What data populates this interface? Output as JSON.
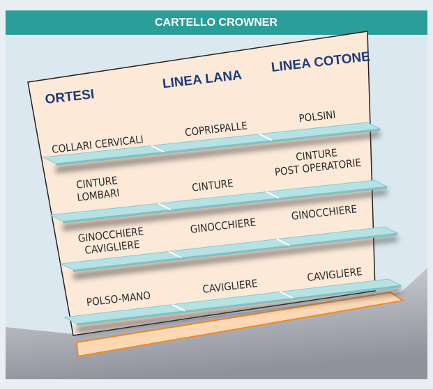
{
  "header": {
    "title": "CARTELLO CROWNER"
  },
  "columns": [
    "ORTESI",
    "LINEA LANA",
    "LINEA COTONE"
  ],
  "shelves": [
    {
      "items": [
        {
          "lines": [
            "COLLARI CERVICALI"
          ]
        },
        {
          "lines": [
            "COPRISPALLE"
          ]
        },
        {
          "lines": [
            "POLSINI"
          ]
        }
      ]
    },
    {
      "items": [
        {
          "lines": [
            "CINTURE",
            "LOMBARI"
          ]
        },
        {
          "lines": [
            "CINTURE"
          ]
        },
        {
          "lines": [
            "CINTURE",
            "POST OPERATORIE"
          ]
        }
      ]
    },
    {
      "items": [
        {
          "lines": [
            "GINOCCHIERE",
            "CAVIGLIERE"
          ]
        },
        {
          "lines": [
            "GINOCCHIERE"
          ]
        },
        {
          "lines": [
            "GINOCCHIERE"
          ]
        }
      ]
    },
    {
      "items": [
        {
          "lines": [
            "POLSO-MANO"
          ]
        },
        {
          "lines": [
            "CAVIGLIERE"
          ]
        },
        {
          "lines": [
            "CAVIGLIERE"
          ]
        }
      ]
    }
  ]
}
